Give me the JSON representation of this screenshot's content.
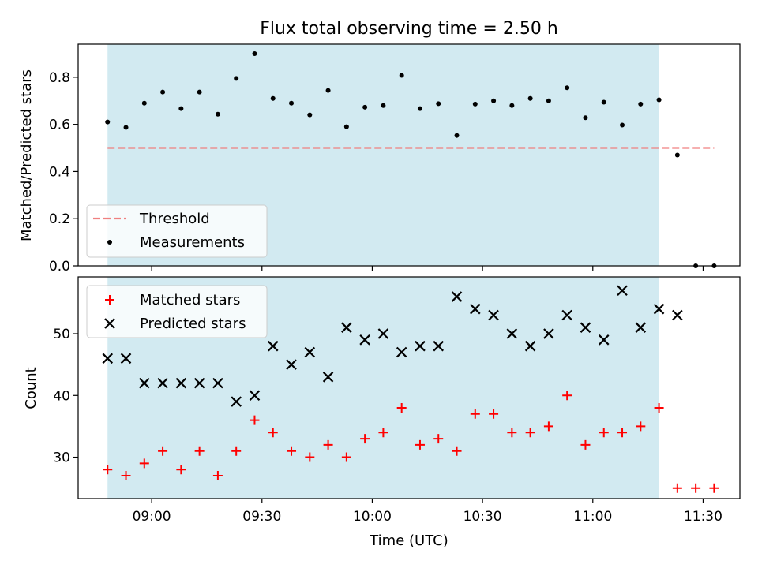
{
  "chart_data": [
    {
      "type": "scatter",
      "title": "Flux total observing time = 2.50 h",
      "xlabel": "",
      "ylabel": "Matched/Predicted stars",
      "ylim": [
        0,
        0.94
      ],
      "yticks": [
        0.0,
        0.2,
        0.4,
        0.6,
        0.8
      ],
      "ytick_labels": [
        "0.0",
        "0.2",
        "0.4",
        "0.6",
        "0.8"
      ],
      "shaded_span": {
        "from": "08:48",
        "to": "11:18",
        "color": "#add8e6"
      },
      "threshold": {
        "name": "Threshold",
        "y": 0.5,
        "from": "08:48",
        "to": "11:33",
        "color": "#f08080",
        "style": "dashed"
      },
      "legend": {
        "placement": "lower-left",
        "entries": [
          "Threshold",
          "Measurements"
        ]
      },
      "series": [
        {
          "name": "Measurements",
          "marker": "dot",
          "color": "#000000",
          "x": [
            "08:48",
            "08:53",
            "08:58",
            "09:03",
            "09:08",
            "09:13",
            "09:18",
            "09:23",
            "09:28",
            "09:33",
            "09:38",
            "09:43",
            "09:48",
            "09:53",
            "09:58",
            "10:03",
            "10:08",
            "10:13",
            "10:18",
            "10:23",
            "10:28",
            "10:33",
            "10:38",
            "10:43",
            "10:48",
            "10:53",
            "10:58",
            "11:03",
            "11:08",
            "11:13",
            "11:18",
            "11:23",
            "11:28",
            "11:33"
          ],
          "y": [
            0.61,
            0.587,
            0.69,
            0.737,
            0.667,
            0.737,
            0.643,
            0.795,
            0.9,
            0.71,
            0.69,
            0.64,
            0.744,
            0.59,
            0.673,
            0.68,
            0.808,
            0.667,
            0.688,
            0.553,
            0.686,
            0.7,
            0.68,
            0.71,
            0.7,
            0.755,
            0.628,
            0.694,
            0.597,
            0.686,
            0.704,
            0.47,
            0.0,
            0.0
          ]
        }
      ]
    },
    {
      "type": "scatter",
      "xlabel": "Time (UTC)",
      "ylabel": "Count",
      "ylim": [
        23.3,
        59.2
      ],
      "yticks": [
        30,
        40,
        50
      ],
      "ytick_labels": [
        "30",
        "40",
        "50"
      ],
      "xlim": [
        "08:40",
        "11:40"
      ],
      "xticks": [
        "09:00",
        "09:30",
        "10:00",
        "10:30",
        "11:00",
        "11:30"
      ],
      "shaded_span": {
        "from": "08:48",
        "to": "11:18",
        "color": "#add8e6"
      },
      "legend": {
        "placement": "upper-left",
        "entries": [
          "Matched stars",
          "Predicted stars"
        ]
      },
      "series": [
        {
          "name": "Matched stars",
          "marker": "plus",
          "color": "#ff0000",
          "x": [
            "08:48",
            "08:53",
            "08:58",
            "09:03",
            "09:08",
            "09:13",
            "09:18",
            "09:23",
            "09:28",
            "09:33",
            "09:38",
            "09:43",
            "09:48",
            "09:53",
            "09:58",
            "10:03",
            "10:08",
            "10:13",
            "10:18",
            "10:23",
            "10:28",
            "10:33",
            "10:38",
            "10:43",
            "10:48",
            "10:53",
            "10:58",
            "11:03",
            "11:08",
            "11:13",
            "11:18",
            "11:23",
            "11:28",
            "11:33"
          ],
          "y": [
            28,
            27,
            29,
            31,
            28,
            31,
            27,
            31,
            36,
            34,
            31,
            30,
            32,
            30,
            33,
            34,
            38,
            32,
            33,
            31,
            37,
            37,
            34,
            34,
            35,
            40,
            32,
            34,
            34,
            35,
            38,
            25,
            25,
            25
          ]
        },
        {
          "name": "Predicted stars",
          "marker": "x",
          "color": "#000000",
          "x": [
            "08:48",
            "08:53",
            "08:58",
            "09:03",
            "09:08",
            "09:13",
            "09:18",
            "09:23",
            "09:28",
            "09:33",
            "09:38",
            "09:43",
            "09:48",
            "09:53",
            "09:58",
            "10:03",
            "10:08",
            "10:13",
            "10:18",
            "10:23",
            "10:28",
            "10:33",
            "10:38",
            "10:43",
            "10:48",
            "10:53",
            "10:58",
            "11:03",
            "11:08",
            "11:13",
            "11:18",
            "11:23"
          ],
          "y": [
            46,
            46,
            42,
            42,
            42,
            42,
            42,
            39,
            40,
            48,
            45,
            47,
            43,
            51,
            49,
            50,
            47,
            48,
            48,
            56,
            54,
            53,
            50,
            48,
            50,
            53,
            51,
            49,
            57,
            51,
            54,
            53
          ]
        }
      ]
    }
  ]
}
